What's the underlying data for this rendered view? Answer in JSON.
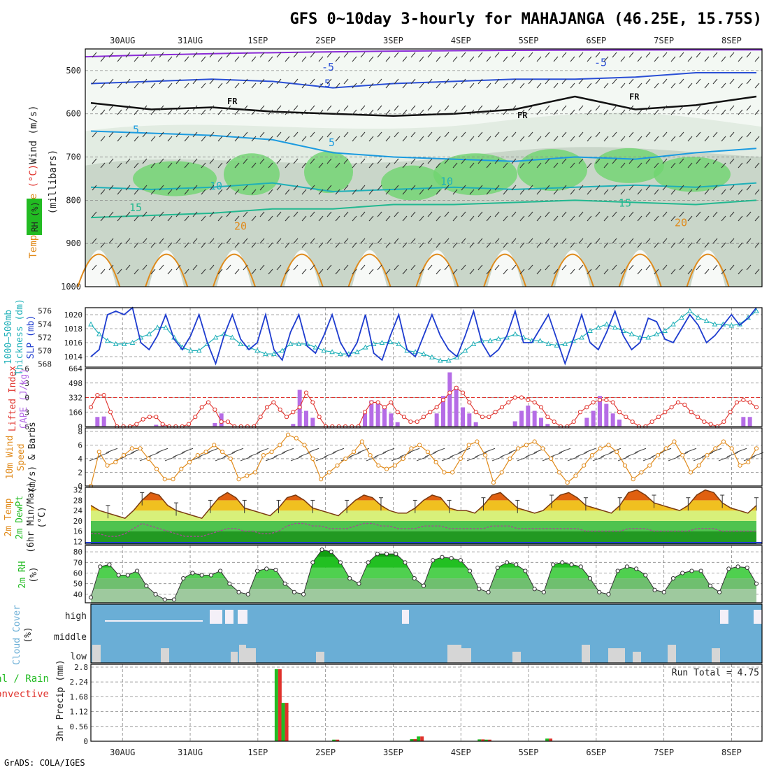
{
  "title": "GFS 0~10day 3-hourly for MAHAJANGA (46.25E, 15.75S)",
  "credit": "GrADS: COLA/IGES",
  "colors": {
    "blue": "#1e3ccf",
    "cyan": "#1fb0b8",
    "purple": "#b56ce6",
    "red": "#e0322c",
    "orange": "#e08a1a",
    "green": "#22bb22",
    "sky": "#6aaed6"
  },
  "chart_data": [
    {
      "type": "area",
      "panel": "upper-air",
      "ylabel": [
        "Wind (m/s)",
        "Temperature (°C)",
        "RH (%)",
        "(millibars)"
      ],
      "ylabel_words": {
        "wind": "Wind",
        "wind_unit": "(m/s)",
        "temperature": "Temperature",
        "temperature_unit": "(°C)",
        "rh": "RH (%)",
        "pressure": "(millibars)"
      },
      "yticks": [
        "500",
        "600",
        "700",
        "800",
        "900",
        "1000"
      ],
      "ylim": [
        1000,
        450
      ],
      "xticks": [
        "30AUG",
        "31AUG",
        "1SEP",
        "2SEP",
        "3SEP",
        "4SEP",
        "5SEP",
        "6SEP",
        "7SEP",
        "8SEP"
      ],
      "contour_labels": [
        "-5",
        "-5",
        "-5",
        "FR",
        "FR",
        "FR",
        "5",
        "5",
        "10",
        "10",
        "15",
        "15",
        "20",
        "20"
      ],
      "contours": {
        "freezing_level_mb": [
          575,
          590,
          585,
          595,
          600,
          605,
          600,
          590,
          560,
          590,
          580,
          560
        ],
        "t_minus5_mb": [
          530,
          525,
          520,
          525,
          540,
          530,
          525,
          520,
          520,
          515,
          505,
          505
        ],
        "t_5_mb": [
          640,
          645,
          650,
          660,
          690,
          700,
          705,
          710,
          700,
          705,
          690,
          680
        ],
        "t_10_mb": [
          770,
          775,
          770,
          760,
          780,
          775,
          770,
          775,
          770,
          765,
          770,
          760
        ],
        "t_15_mb": [
          840,
          835,
          830,
          820,
          820,
          810,
          810,
          805,
          800,
          805,
          810,
          800
        ]
      }
    },
    {
      "type": "line",
      "panel": "slp-thickness",
      "ylabel": [
        "1000-500mb Thickness (dm)",
        "SLP (mb)"
      ],
      "ylabel_words": {
        "thickness": "1000–500mb",
        "thickness_2": "Thickness (dm)",
        "slp": "SLP (mb)"
      },
      "yticks_left": [
        "568",
        "570",
        "572",
        "574",
        "576"
      ],
      "yticks_right": [
        "1014",
        "1016",
        "1018",
        "1020"
      ],
      "ylim_slp": [
        1012.5,
        1021
      ],
      "ylim_thickness": [
        567.5,
        576.5
      ],
      "series": [
        {
          "name": "SLP",
          "color": "#1e3ccf",
          "values": [
            1014,
            1015,
            1020,
            1020.5,
            1020,
            1021,
            1016,
            1015,
            1017,
            1020,
            1016.5,
            1015,
            1017,
            1020,
            1016,
            1013,
            1017,
            1020,
            1016.5,
            1015,
            1016,
            1020,
            1015,
            1013.5,
            1017.5,
            1020,
            1015.5,
            1014.5,
            1017,
            1020,
            1016,
            1014,
            1016,
            1020,
            1014.5,
            1013.5,
            1017,
            1020,
            1015,
            1014,
            1017,
            1020,
            1017,
            1015,
            1014,
            1017,
            1020.5,
            1016,
            1014,
            1015,
            1017,
            1020.5,
            1016,
            1016,
            1018,
            1020,
            1016.5,
            1013,
            1016.5,
            1020,
            1016,
            1015,
            1017.5,
            1020.5,
            1017,
            1015,
            1016,
            1019.5,
            1019,
            1016.5,
            1016,
            1018,
            1020,
            1018.5,
            1016,
            1017,
            1018.5,
            1020,
            1018.5,
            1019.5,
            1021
          ]
        },
        {
          "name": "Thickness",
          "color": "#1fb0b8",
          "values": [
            574,
            572.5,
            571.5,
            571,
            571,
            571.2,
            572,
            572.5,
            573.5,
            573.5,
            572,
            570.5,
            570,
            570,
            571,
            572,
            572.5,
            572,
            571,
            570.5,
            570,
            569.5,
            569.5,
            570,
            571,
            571,
            571,
            570.5,
            570,
            569.8,
            569.5,
            569.5,
            569.8,
            570.5,
            571,
            571.2,
            571.3,
            571,
            570,
            569.8,
            569.5,
            569,
            568.5,
            568.5,
            569,
            570,
            571,
            571.5,
            571.5,
            571.8,
            572,
            572.5,
            572,
            571.5,
            571.5,
            571,
            570.8,
            571,
            571.5,
            572,
            573,
            573.5,
            574,
            573.5,
            573,
            572.5,
            572,
            572,
            572.5,
            573,
            574,
            575,
            576,
            575,
            574.5,
            574,
            574,
            573.8,
            574,
            575,
            576
          ]
        }
      ]
    },
    {
      "type": "bar",
      "panel": "cape-li",
      "ylabel": [
        "Lifted Index",
        "CAPE (J/kg)"
      ],
      "ylabel_words": {
        "li": "Lifted Index",
        "cape": "CAPE (J/kg)"
      },
      "yticks_left": [
        "-6",
        "-3",
        "0",
        "3",
        "6"
      ],
      "yticks_right": [
        "0",
        "166",
        "332",
        "498",
        "664"
      ],
      "ylim_cape": [
        0,
        664
      ],
      "ylim_li": [
        6,
        -6
      ],
      "series": [
        {
          "name": "CAPE",
          "color": "#b56ce6",
          "values": [
            0,
            110,
            115,
            0,
            0,
            0,
            0,
            0,
            0,
            0,
            20,
            25,
            0,
            0,
            0,
            0,
            0,
            0,
            0,
            40,
            150,
            0,
            0,
            0,
            0,
            0,
            0,
            0,
            0,
            0,
            0,
            30,
            420,
            180,
            100,
            0,
            0,
            0,
            0,
            0,
            0,
            0,
            150,
            300,
            280,
            220,
            150,
            50,
            0,
            0,
            0,
            0,
            0,
            150,
            350,
            620,
            460,
            220,
            150,
            50,
            0,
            0,
            0,
            0,
            0,
            60,
            180,
            240,
            180,
            100,
            30,
            0,
            0,
            0,
            0,
            0,
            100,
            180,
            350,
            260,
            150,
            80,
            0,
            0,
            0,
            0,
            0,
            0,
            0,
            0,
            0,
            0,
            0,
            0,
            0,
            0,
            0,
            0,
            0,
            0,
            110,
            110,
            0
          ]
        },
        {
          "name": "Lifted Index",
          "color": "#e0322c",
          "values": [
            2,
            -0.5,
            -0.5,
            3,
            6,
            6,
            6,
            5.5,
            4.5,
            4,
            4,
            5.5,
            6,
            6,
            6,
            5.5,
            4,
            2,
            1,
            2.5,
            5,
            5,
            6,
            6,
            6,
            6,
            4,
            2,
            1,
            2.5,
            4,
            3,
            2,
            -1,
            1,
            4,
            6,
            6,
            6,
            6,
            6,
            6,
            3,
            1,
            1,
            2,
            1,
            3,
            4,
            5,
            5,
            4,
            3,
            2,
            0.5,
            -1,
            -2,
            -1,
            1,
            3,
            4,
            4,
            3,
            2,
            1,
            0,
            0,
            0.5,
            1,
            2,
            4,
            5,
            6,
            6,
            5,
            3,
            2,
            1,
            0.5,
            0.5,
            1,
            3,
            4,
            5,
            6,
            6,
            5,
            4,
            3,
            2,
            1,
            1.5,
            3,
            4,
            5,
            5.5,
            6,
            5,
            3,
            1,
            0.5,
            1,
            2
          ]
        }
      ]
    },
    {
      "type": "line",
      "panel": "wind10m",
      "ylabel": [
        "10m Wind",
        "Speed",
        "(m/s) & Barbs"
      ],
      "yticks": [
        "0",
        "2",
        "4",
        "6",
        "8"
      ],
      "ylim": [
        0,
        8.5
      ],
      "series": [
        {
          "name": "Speed",
          "color": "#e08a1a",
          "values": [
            0,
            5,
            3,
            3.5,
            4.5,
            5.5,
            5.5,
            4,
            2.5,
            1,
            1,
            2.5,
            3.5,
            4.5,
            5,
            6,
            5,
            4,
            1,
            1.5,
            2,
            4.5,
            5,
            6,
            7.5,
            7,
            6,
            4,
            1,
            2,
            3,
            4,
            5,
            6.5,
            4.5,
            3,
            2.5,
            3,
            4,
            5.5,
            6,
            5,
            3.5,
            2,
            2,
            4,
            6,
            6.5,
            4.5,
            0.5,
            2,
            4,
            5.5,
            6,
            6.5,
            5.5,
            4,
            2,
            0.5,
            1.5,
            3,
            4.5,
            5.5,
            6,
            5,
            3,
            1,
            2,
            3,
            4.5,
            5.5,
            6.5,
            4.5,
            2,
            3,
            4.5,
            5.5,
            6.5,
            5.5,
            3,
            3.5,
            5.5
          ]
        }
      ]
    },
    {
      "type": "area",
      "panel": "temperature",
      "ylabel": [
        "2m Temp",
        "2m DewPt",
        "(6hr Min/Max)",
        "(°C)"
      ],
      "yticks": [
        "12",
        "16",
        "20",
        "24",
        "28",
        "32"
      ],
      "ylim": [
        11,
        33
      ],
      "series": [
        {
          "name": "2m Temp",
          "color": "#7a3a10",
          "values": [
            26,
            24,
            23,
            22,
            21,
            24,
            28,
            31,
            30,
            26,
            24,
            23,
            22,
            21,
            25,
            29,
            31,
            29,
            25,
            24,
            23,
            22,
            25,
            29,
            30,
            28,
            25,
            24,
            23,
            22,
            25,
            28,
            30,
            29,
            26,
            24,
            23,
            23,
            25,
            28,
            30,
            29,
            25,
            24,
            24,
            23,
            26,
            30,
            31,
            28,
            25,
            24,
            23,
            24,
            27,
            30,
            31,
            29,
            26,
            25,
            24,
            23,
            26,
            31,
            32,
            30,
            27,
            26,
            25,
            24,
            26,
            30,
            32,
            31,
            27,
            25,
            24,
            23,
            26
          ]
        },
        {
          "name": "2m DewPt",
          "color": "#a05090",
          "values": [
            15,
            15,
            14,
            14,
            15,
            17,
            19,
            18,
            17,
            16,
            15,
            14,
            14,
            14,
            15,
            16,
            17,
            17,
            16,
            16,
            15,
            15,
            16,
            18,
            19,
            19,
            18,
            18,
            17,
            17,
            17,
            18,
            19,
            19,
            18,
            18,
            17,
            17,
            17,
            18,
            18,
            18,
            17,
            17,
            17,
            17,
            17,
            18,
            18,
            18,
            17,
            17,
            17,
            17,
            17,
            17,
            17,
            17,
            16,
            16,
            16,
            16,
            16,
            17,
            17,
            17,
            16,
            16,
            16,
            16,
            16,
            17,
            17,
            17,
            16,
            16,
            16,
            16,
            16
          ]
        }
      ]
    },
    {
      "type": "area",
      "panel": "rh2m",
      "ylabel": [
        "2m RH",
        "(%)"
      ],
      "yticks": [
        "40",
        "50",
        "60",
        "70",
        "80"
      ],
      "ylim": [
        32,
        86
      ],
      "series": [
        {
          "name": "2m RH",
          "color": "#22bb22",
          "values": [
            37,
            66,
            68,
            58,
            58,
            62,
            48,
            40,
            35,
            35,
            55,
            60,
            58,
            58,
            62,
            50,
            42,
            40,
            62,
            64,
            63,
            50,
            42,
            40,
            70,
            82,
            80,
            70,
            55,
            50,
            70,
            78,
            78,
            78,
            70,
            55,
            48,
            72,
            75,
            74,
            72,
            62,
            45,
            42,
            65,
            70,
            68,
            62,
            45,
            42,
            68,
            70,
            68,
            66,
            55,
            42,
            40,
            62,
            66,
            64,
            58,
            44,
            42,
            55,
            60,
            62,
            62,
            48,
            42,
            64,
            66,
            65,
            50
          ]
        }
      ]
    },
    {
      "type": "heatmap",
      "panel": "cloud",
      "ylabel": [
        "Cloud Cover",
        "(%)"
      ],
      "rows": [
        "high",
        "middle",
        "low"
      ]
    },
    {
      "type": "bar",
      "panel": "precip",
      "ylabel": [
        "3hr Precip (mm)"
      ],
      "left_label_1": "tal / Rain",
      "left_label_2": "Convective",
      "yticks": [
        "0",
        "0.56",
        "1.12",
        "1.68",
        "2.24",
        "2.8"
      ],
      "ylim": [
        0,
        2.8
      ],
      "run_total": "Run Total = 4.75",
      "series": [
        {
          "name": "Total / Rain",
          "color": "#22bb22",
          "bars": [
            {
              "day": 2.85,
              "value": 2.72
            },
            {
              "day": 2.95,
              "value": 1.45
            },
            {
              "day": 3.7,
              "value": 0.06
            },
            {
              "day": 4.85,
              "value": 0.08
            },
            {
              "day": 4.95,
              "value": 0.18
            },
            {
              "day": 5.85,
              "value": 0.07
            },
            {
              "day": 5.95,
              "value": 0.06
            },
            {
              "day": 6.85,
              "value": 0.1
            }
          ]
        },
        {
          "name": "Convective",
          "color": "#e0322c",
          "bars": [
            {
              "day": 2.85,
              "value": 2.72
            },
            {
              "day": 2.95,
              "value": 1.45
            },
            {
              "day": 3.7,
              "value": 0.06
            },
            {
              "day": 4.85,
              "value": 0.08
            },
            {
              "day": 4.95,
              "value": 0.18
            },
            {
              "day": 5.85,
              "value": 0.07
            },
            {
              "day": 5.95,
              "value": 0.06
            },
            {
              "day": 6.85,
              "value": 0.1
            }
          ]
        }
      ]
    }
  ]
}
